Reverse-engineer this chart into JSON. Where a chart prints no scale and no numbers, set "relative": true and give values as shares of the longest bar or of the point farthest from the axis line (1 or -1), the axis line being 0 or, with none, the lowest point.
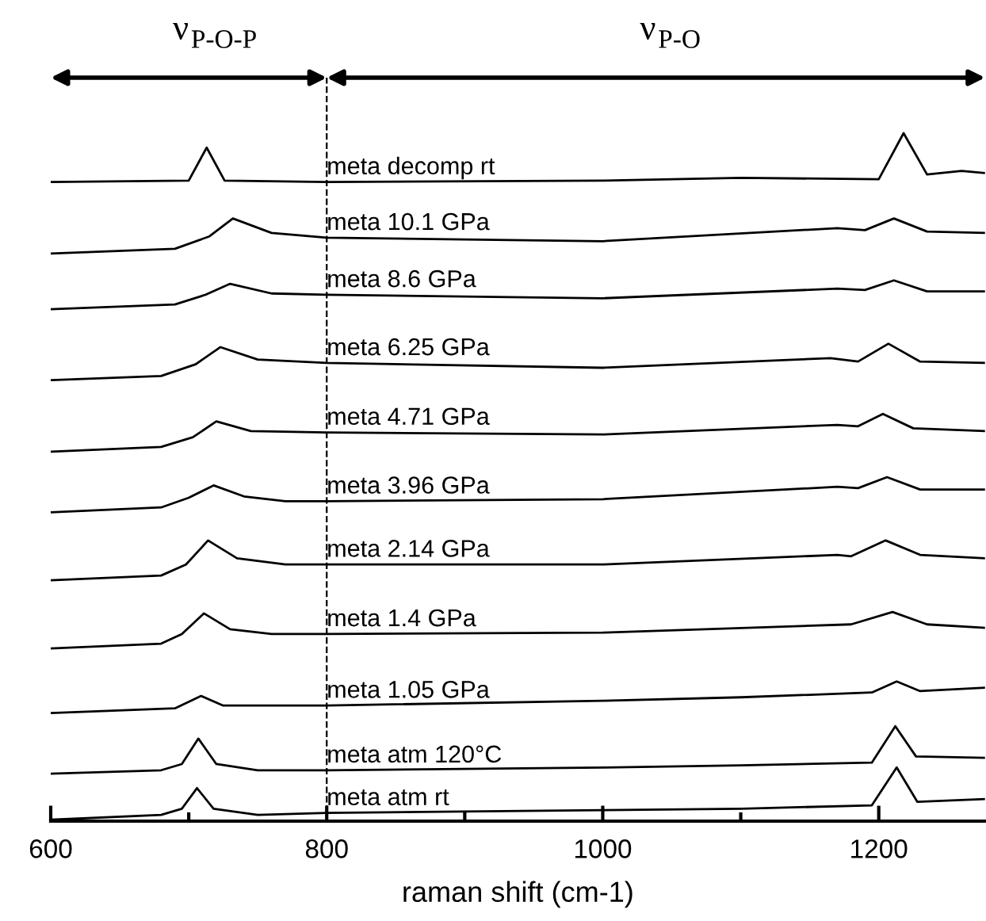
{
  "chart_data": {
    "type": "line",
    "relative": true,
    "xlabel": "raman shift (cm-1)",
    "xlim": [
      600,
      1277
    ],
    "xticks": [
      600,
      {
        "value": 700,
        "label": null
      },
      800,
      {
        "value": 900,
        "label": null
      },
      1000,
      {
        "value": 1100,
        "label": null
      },
      1200
    ],
    "marker": "none",
    "line_style": "solid",
    "grid": false,
    "legend": false,
    "ref_lines": [
      {
        "axis": "x",
        "value": 800,
        "line_style": "dashed",
        "color": "#000000"
      }
    ],
    "annotations": [
      "ν$_{P-O-P}$",
      "ν$_{P-O}$"
    ],
    "series": [
      {
        "name": "meta atm rt",
        "color": "#000000",
        "x": [
          600,
          680,
          695,
          706,
          718,
          750,
          800,
          1000,
          1100,
          1195,
          1213,
          1228,
          1277
        ],
        "values": [
          0.002,
          0.009,
          0.018,
          0.048,
          0.018,
          0.009,
          0.012,
          0.016,
          0.018,
          0.023,
          0.078,
          0.028,
          0.032
        ]
      },
      {
        "name": "meta atm 120°C",
        "color": "#000000",
        "x": [
          600,
          680,
          695,
          707,
          720,
          750,
          800,
          1000,
          1100,
          1195,
          1212,
          1227,
          1277
        ],
        "values": [
          0.069,
          0.074,
          0.083,
          0.12,
          0.083,
          0.074,
          0.074,
          0.078,
          0.081,
          0.085,
          0.138,
          0.094,
          0.092
        ]
      },
      {
        "name": "meta 1.05 GPa",
        "color": "#000000",
        "x": [
          600,
          690,
          709,
          725,
          800,
          1000,
          1100,
          1195,
          1213,
          1230,
          1277
        ],
        "values": [
          0.157,
          0.164,
          0.182,
          0.168,
          0.168,
          0.175,
          0.18,
          0.187,
          0.203,
          0.189,
          0.194
        ]
      },
      {
        "name": "meta 1.4 GPa",
        "color": "#000000",
        "x": [
          600,
          680,
          695,
          711,
          730,
          760,
          800,
          1000,
          1180,
          1210,
          1235,
          1277
        ],
        "values": [
          0.251,
          0.258,
          0.272,
          0.302,
          0.279,
          0.272,
          0.272,
          0.274,
          0.286,
          0.304,
          0.286,
          0.281
        ]
      },
      {
        "name": "meta 2.14 GPa",
        "color": "#000000",
        "x": [
          600,
          680,
          698,
          714,
          735,
          770,
          800,
          1000,
          1170,
          1180,
          1205,
          1230,
          1277
        ],
        "values": [
          0.35,
          0.357,
          0.373,
          0.408,
          0.382,
          0.373,
          0.373,
          0.373,
          0.387,
          0.385,
          0.408,
          0.387,
          0.382
        ]
      },
      {
        "name": "meta 3.96 GPa",
        "color": "#000000",
        "x": [
          600,
          680,
          700,
          718,
          740,
          770,
          800,
          1000,
          1170,
          1185,
          1206,
          1230,
          1277
        ],
        "values": [
          0.449,
          0.456,
          0.47,
          0.488,
          0.472,
          0.465,
          0.465,
          0.468,
          0.486,
          0.484,
          0.5,
          0.482,
          0.482
        ]
      },
      {
        "name": "meta 4.71 GPa",
        "color": "#000000",
        "x": [
          600,
          680,
          703,
          720,
          745,
          800,
          1000,
          1170,
          1185,
          1203,
          1225,
          1277
        ],
        "values": [
          0.537,
          0.544,
          0.558,
          0.581,
          0.567,
          0.565,
          0.562,
          0.576,
          0.574,
          0.592,
          0.571,
          0.567
        ]
      },
      {
        "name": "meta 6.25 GPa",
        "color": "#000000",
        "x": [
          600,
          680,
          705,
          723,
          750,
          800,
          1000,
          1165,
          1185,
          1207,
          1230,
          1277
        ],
        "values": [
          0.641,
          0.647,
          0.664,
          0.689,
          0.671,
          0.666,
          0.659,
          0.673,
          0.668,
          0.694,
          0.668,
          0.666
        ]
      },
      {
        "name": "meta 8.6 GPa",
        "color": "#000000",
        "x": [
          600,
          690,
          712,
          730,
          760,
          800,
          1000,
          1170,
          1190,
          1211,
          1235,
          1277
        ],
        "values": [
          0.744,
          0.751,
          0.765,
          0.781,
          0.767,
          0.765,
          0.76,
          0.774,
          0.772,
          0.786,
          0.77,
          0.77
        ]
      },
      {
        "name": "meta 10.1 GPa",
        "color": "#000000",
        "x": [
          600,
          690,
          715,
          732,
          760,
          800,
          1000,
          1170,
          1190,
          1211,
          1235,
          1277
        ],
        "values": [
          0.825,
          0.832,
          0.85,
          0.876,
          0.855,
          0.848,
          0.843,
          0.862,
          0.859,
          0.876,
          0.857,
          0.855
        ]
      },
      {
        "name": "meta decomp rt",
        "color": "#000000",
        "x": [
          600,
          700,
          713,
          726,
          800,
          1000,
          1100,
          1200,
          1218,
          1235,
          1260,
          1277
        ],
        "values": [
          0.929,
          0.931,
          0.979,
          0.931,
          0.929,
          0.931,
          0.935,
          0.933,
          1,
          0.94,
          0.945,
          0.942
        ]
      }
    ]
  }
}
